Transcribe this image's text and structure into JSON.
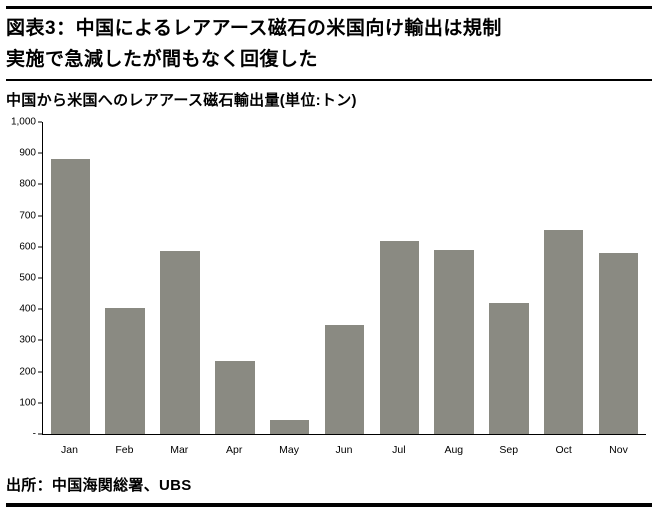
{
  "title": {
    "line1": "図表3：中国によるレアアース磁石の米国向け輸出は規制",
    "line2": "実施で急減したが間もなく回復した"
  },
  "subtitle": "中国から米国へのレアアース磁石輸出量(単位:トン)",
  "source": "出所：中国海関総署、UBS",
  "colors": {
    "bar": "#8a8a82",
    "rule": "#000000",
    "text": "#000000",
    "background": "#ffffff"
  },
  "chart_data": {
    "type": "bar",
    "title": "中国から米国へのレアアース磁石輸出量(単位:トン)",
    "categories": [
      "Jan",
      "Feb",
      "Mar",
      "Apr",
      "May",
      "Jun",
      "Jul",
      "Aug",
      "Sep",
      "Oct",
      "Nov"
    ],
    "values": [
      880,
      405,
      585,
      235,
      45,
      350,
      620,
      590,
      420,
      655,
      580
    ],
    "xlabel": "",
    "ylabel": "",
    "ylim": [
      0,
      1000
    ],
    "yticks": [
      1000,
      900,
      800,
      700,
      600,
      500,
      400,
      300,
      200,
      100,
      0
    ],
    "ytick_labels": [
      "1,000",
      "900",
      "800",
      "700",
      "600",
      "500",
      "400",
      "300",
      "200",
      "100",
      "-"
    ],
    "grid": false,
    "legend": false,
    "bar_color": "#8a8a82"
  }
}
